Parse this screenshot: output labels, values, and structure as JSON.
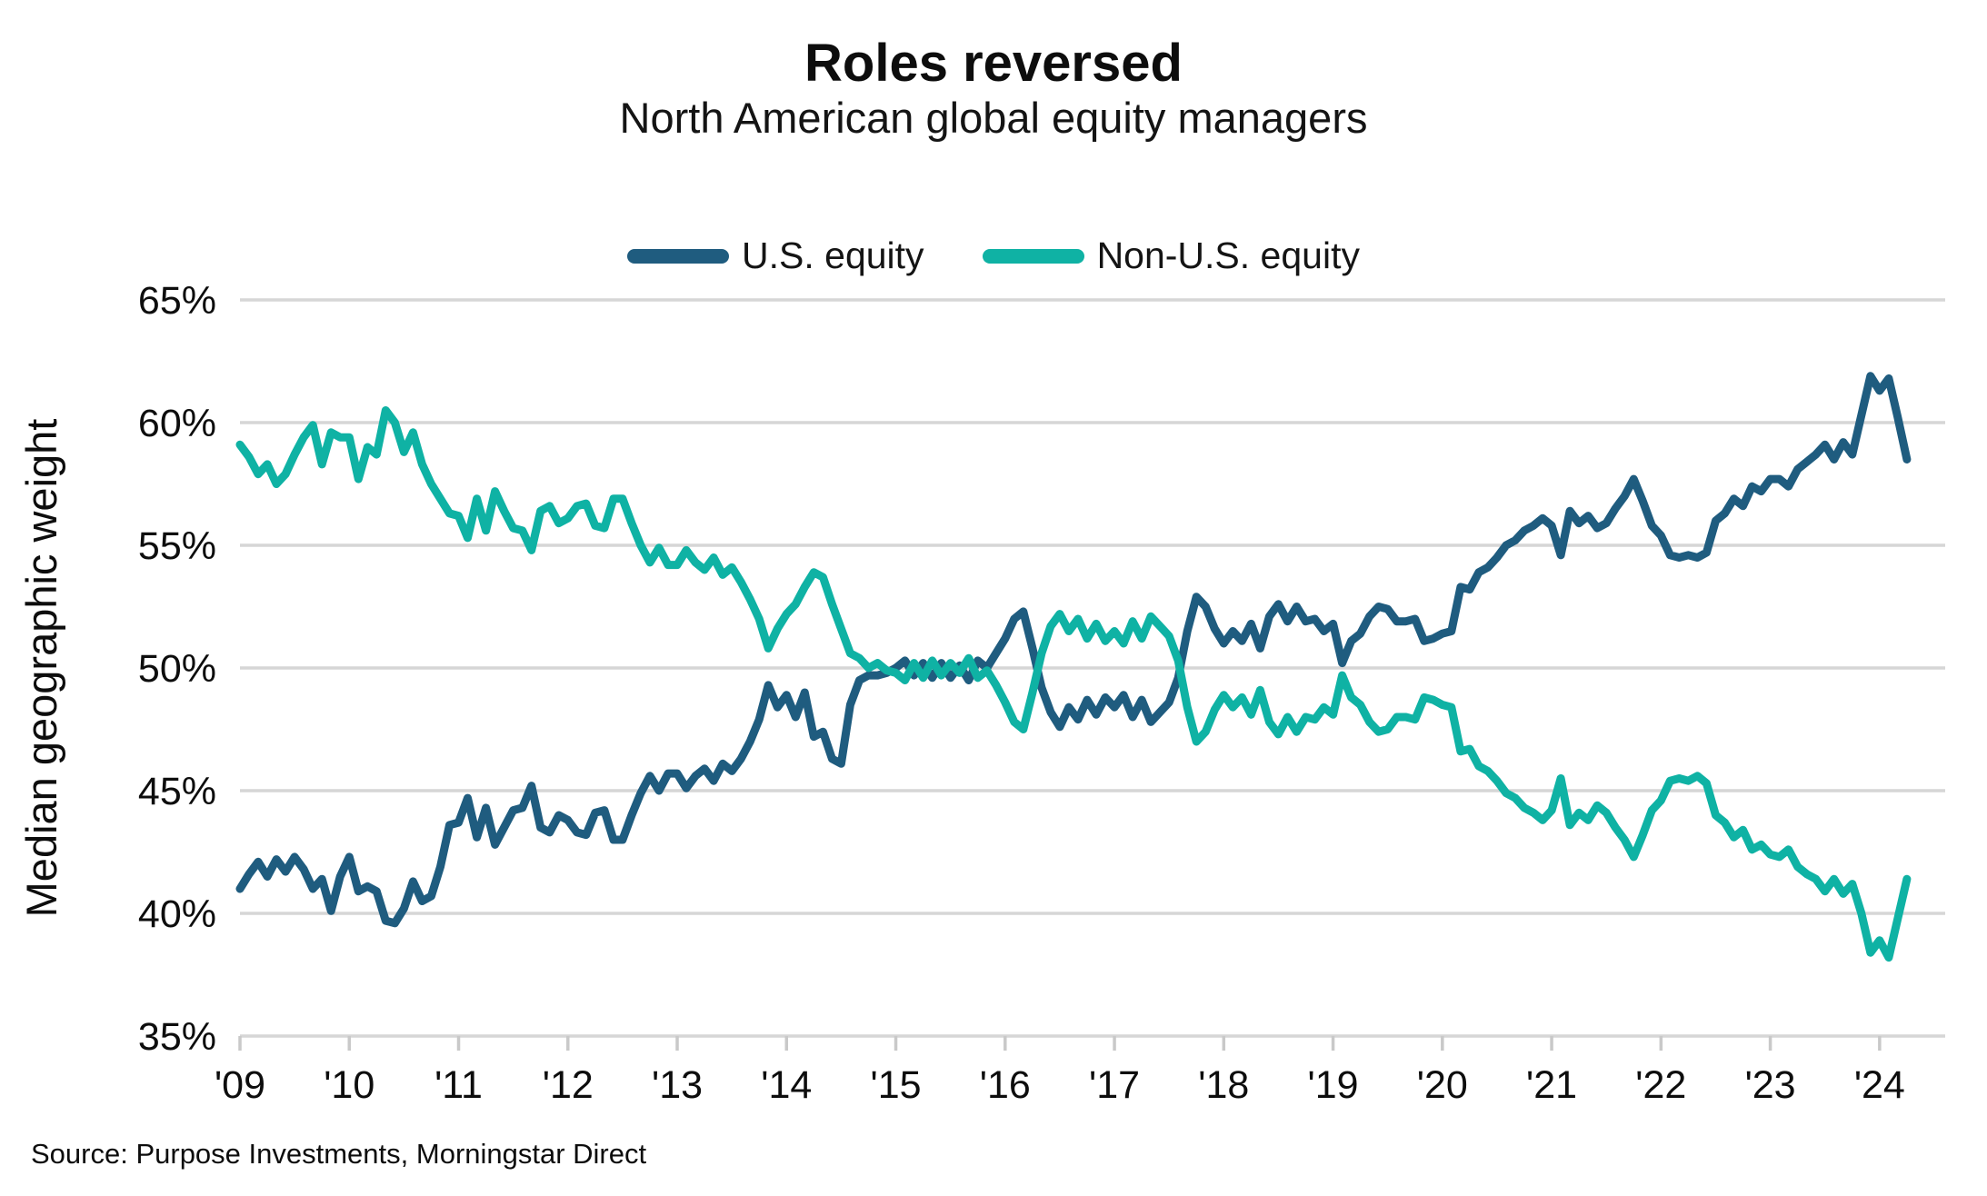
{
  "header": {
    "title": "Roles reversed",
    "subtitle": "North American global equity managers"
  },
  "legend": {
    "items": [
      {
        "label": "U.S. equity",
        "color": "#1f5c7f"
      },
      {
        "label": "Non-U.S. equity",
        "color": "#0fb2a4"
      }
    ]
  },
  "footer": {
    "source": "Source: Purpose Investments, Morningstar Direct"
  },
  "chart_data": {
    "type": "line",
    "title": "Roles reversed",
    "subtitle": "North American global equity managers",
    "xlabel": "",
    "ylabel": "Median geographic weight",
    "ylim": [
      35,
      65
    ],
    "xlim": [
      2009,
      2024.6
    ],
    "grid": "horizontal",
    "legend_position": "top-center",
    "yticks": [
      {
        "value": 65,
        "label": "65%"
      },
      {
        "value": 60,
        "label": "60%"
      },
      {
        "value": 55,
        "label": "55%"
      },
      {
        "value": 50,
        "label": "50%"
      },
      {
        "value": 45,
        "label": "45%"
      },
      {
        "value": 40,
        "label": "40%"
      },
      {
        "value": 35,
        "label": "35%"
      }
    ],
    "xticks": [
      {
        "value": 2009,
        "label": "'09"
      },
      {
        "value": 2010,
        "label": "'10"
      },
      {
        "value": 2011,
        "label": "'11"
      },
      {
        "value": 2012,
        "label": "'12"
      },
      {
        "value": 2013,
        "label": "'13"
      },
      {
        "value": 2014,
        "label": "'14"
      },
      {
        "value": 2015,
        "label": "'15"
      },
      {
        "value": 2016,
        "label": "'16"
      },
      {
        "value": 2017,
        "label": "'17"
      },
      {
        "value": 2018,
        "label": "'18"
      },
      {
        "value": 2019,
        "label": "'19"
      },
      {
        "value": 2020,
        "label": "'20"
      },
      {
        "value": 2021,
        "label": "'21"
      },
      {
        "value": 2022,
        "label": "'22"
      },
      {
        "value": 2023,
        "label": "'23"
      },
      {
        "value": 2024,
        "label": "'24"
      }
    ],
    "x_start_year": 2009,
    "points_per_year": 12,
    "x_note": "monthly values, Jan 2009 - Apr 2024, percent median geographic weight",
    "series": [
      {
        "name": "U.S. equity",
        "color": "#1f5c7f",
        "values": [
          41.0,
          41.6,
          42.1,
          41.5,
          42.2,
          41.7,
          42.3,
          41.8,
          41.0,
          41.4,
          40.1,
          41.5,
          42.3,
          40.9,
          41.1,
          40.9,
          39.7,
          39.6,
          40.2,
          41.3,
          40.5,
          40.7,
          41.9,
          43.6,
          43.7,
          44.7,
          43.1,
          44.3,
          42.8,
          43.5,
          44.2,
          44.3,
          45.2,
          43.5,
          43.3,
          44.0,
          43.8,
          43.3,
          43.2,
          44.1,
          44.2,
          43.0,
          43.0,
          44.0,
          44.9,
          45.6,
          45.0,
          45.7,
          45.7,
          45.1,
          45.6,
          45.9,
          45.4,
          46.1,
          45.8,
          46.3,
          47.0,
          47.9,
          49.3,
          48.4,
          48.9,
          48.0,
          49.0,
          47.2,
          47.4,
          46.3,
          46.1,
          48.5,
          49.5,
          49.7,
          49.7,
          49.8,
          50.0,
          50.3,
          49.7,
          50.2,
          49.6,
          50.2,
          49.6,
          50.1,
          49.5,
          50.3,
          50.0,
          50.6,
          51.2,
          52.0,
          52.3,
          50.8,
          49.2,
          48.2,
          47.6,
          48.4,
          47.9,
          48.7,
          48.1,
          48.8,
          48.4,
          48.9,
          48.0,
          48.7,
          47.8,
          48.2,
          48.6,
          49.6,
          51.5,
          52.9,
          52.5,
          51.6,
          51.0,
          51.5,
          51.1,
          51.8,
          50.8,
          52.1,
          52.6,
          51.9,
          52.5,
          51.9,
          52.0,
          51.5,
          51.8,
          50.2,
          51.1,
          51.4,
          52.1,
          52.5,
          52.4,
          51.9,
          51.9,
          52.0,
          51.1,
          51.2,
          51.4,
          51.5,
          53.3,
          53.2,
          53.9,
          54.1,
          54.5,
          55.0,
          55.2,
          55.6,
          55.8,
          56.1,
          55.8,
          54.6,
          56.4,
          55.9,
          56.2,
          55.7,
          55.9,
          56.5,
          57.0,
          57.7,
          56.8,
          55.8,
          55.4,
          54.6,
          54.5,
          54.6,
          54.5,
          54.7,
          56.0,
          56.3,
          56.9,
          56.6,
          57.4,
          57.2,
          57.7,
          57.7,
          57.4,
          58.1,
          58.4,
          58.7,
          59.1,
          58.5,
          59.2,
          58.7,
          60.3,
          61.9,
          61.3,
          61.8,
          60.2,
          58.5
        ]
      },
      {
        "name": "Non-U.S. equity",
        "color": "#0fb2a4",
        "values": [
          59.1,
          58.6,
          57.9,
          58.3,
          57.5,
          57.9,
          58.7,
          59.4,
          59.9,
          58.3,
          59.6,
          59.4,
          59.4,
          57.7,
          59.0,
          58.7,
          60.5,
          60.0,
          58.8,
          59.6,
          58.3,
          57.5,
          56.9,
          56.3,
          56.2,
          55.3,
          56.9,
          55.6,
          57.2,
          56.4,
          55.7,
          55.6,
          54.8,
          56.4,
          56.6,
          55.9,
          56.1,
          56.6,
          56.7,
          55.8,
          55.7,
          56.9,
          56.9,
          55.9,
          55.0,
          54.3,
          54.9,
          54.2,
          54.2,
          54.8,
          54.3,
          54.0,
          54.5,
          53.8,
          54.1,
          53.5,
          52.8,
          52.0,
          50.8,
          51.6,
          52.2,
          52.6,
          53.3,
          53.9,
          53.7,
          52.6,
          51.6,
          50.6,
          50.4,
          50.0,
          50.2,
          49.9,
          49.8,
          49.5,
          50.2,
          49.6,
          50.3,
          49.7,
          50.2,
          49.8,
          50.4,
          49.6,
          49.9,
          49.3,
          48.6,
          47.8,
          47.5,
          49.0,
          50.6,
          51.7,
          52.2,
          51.5,
          52.0,
          51.2,
          51.8,
          51.1,
          51.5,
          51.0,
          51.9,
          51.2,
          52.1,
          51.7,
          51.3,
          50.3,
          48.4,
          47.0,
          47.4,
          48.3,
          48.9,
          48.4,
          48.8,
          48.1,
          49.1,
          47.8,
          47.3,
          48.0,
          47.4,
          48.0,
          47.9,
          48.4,
          48.1,
          49.7,
          48.8,
          48.5,
          47.8,
          47.4,
          47.5,
          48.0,
          48.0,
          47.9,
          48.8,
          48.7,
          48.5,
          48.4,
          46.6,
          46.7,
          46.0,
          45.8,
          45.4,
          44.9,
          44.7,
          44.3,
          44.1,
          43.8,
          44.2,
          45.5,
          43.6,
          44.1,
          43.8,
          44.4,
          44.1,
          43.5,
          43.0,
          42.3,
          43.2,
          44.2,
          44.6,
          45.4,
          45.5,
          45.4,
          45.6,
          45.3,
          44.0,
          43.7,
          43.1,
          43.4,
          42.6,
          42.8,
          42.4,
          42.3,
          42.6,
          41.9,
          41.6,
          41.4,
          40.9,
          41.4,
          40.8,
          41.2,
          40.0,
          38.4,
          38.9,
          38.2,
          39.8,
          41.4
        ]
      }
    ]
  }
}
